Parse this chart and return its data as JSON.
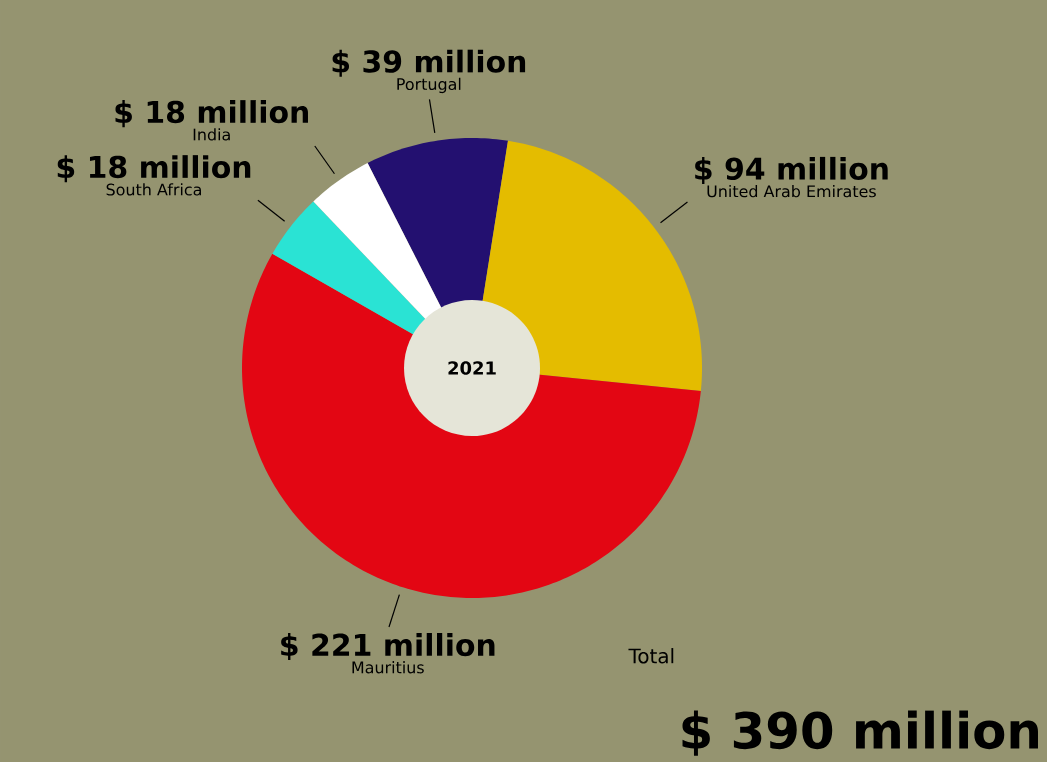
{
  "chart_data": {
    "type": "donut",
    "title": "2021",
    "categories": [
      "Portugal",
      "United Arab Emirates",
      "Mauritius",
      "South Africa",
      "India"
    ],
    "values": [
      39,
      94,
      221,
      18,
      18
    ],
    "colors": [
      "#231070",
      "#e4bc00",
      "#e30613",
      "#2ae3d4",
      "#ffffff"
    ],
    "value_labels": [
      "$ 39 million",
      "$ 94 million",
      "$ 221 million",
      "$ 18 million",
      "$ 18 million"
    ],
    "annotations": [
      "Total",
      "$ 390 million"
    ]
  }
}
